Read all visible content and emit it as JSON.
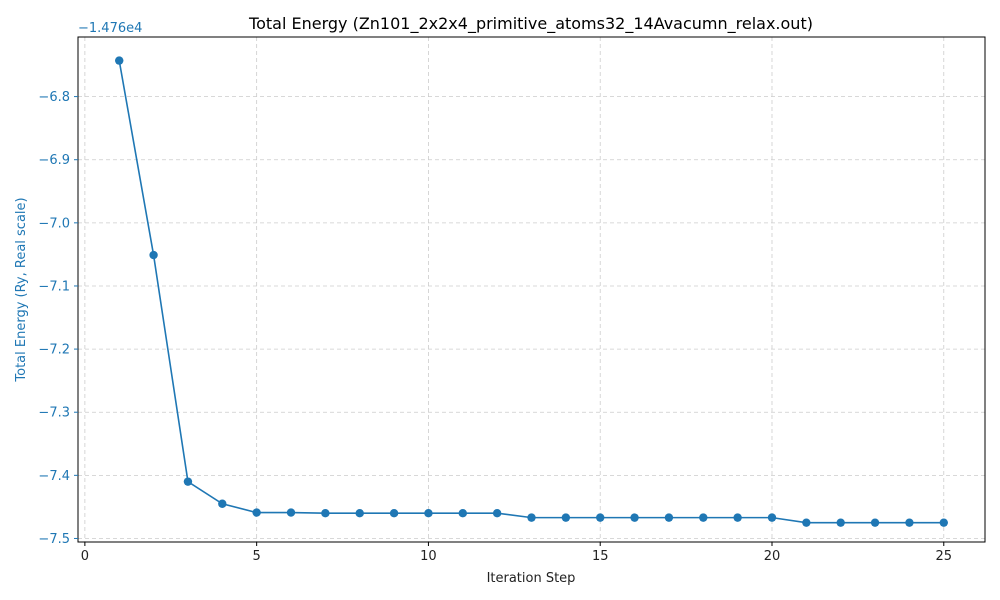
{
  "chart_data": {
    "type": "line",
    "title": "Total Energy (Zn101_2x2x4_primitive_atoms32_14Avacumn_relax.out)",
    "xlabel": "Iteration Step",
    "ylabel": "Total Energy (Ry, Real scale)",
    "offset_label": "−1.476e4",
    "offset_value": -14760,
    "xlim": [
      -0.2,
      26.2
    ],
    "ylim": [
      -7.5056,
      -6.7056
    ],
    "x_ticks": [
      0,
      5,
      10,
      15,
      20,
      25
    ],
    "x_tick_labels": [
      "0",
      "5",
      "10",
      "15",
      "20",
      "25"
    ],
    "y_ticks": [
      -6.8,
      -6.9,
      -7.0,
      -7.1,
      -7.2,
      -7.3,
      -7.4,
      -7.5
    ],
    "y_tick_labels": [
      "−6.8",
      "−6.9",
      "−7.0",
      "−7.1",
      "−7.2",
      "−7.3",
      "−7.4",
      "−7.5"
    ],
    "grid": true,
    "series": [
      {
        "marker": "circle",
        "color": "#1f77b4",
        "x": [
          1,
          2,
          3,
          4,
          5,
          6,
          7,
          8,
          9,
          10,
          11,
          12,
          13,
          14,
          15,
          16,
          17,
          18,
          19,
          20,
          21,
          22,
          23,
          24,
          25
        ],
        "y": [
          -6.743,
          -7.051,
          -7.41,
          -7.445,
          -7.459,
          -7.459,
          -7.46,
          -7.46,
          -7.46,
          -7.46,
          -7.46,
          -7.46,
          -7.467,
          -7.467,
          -7.467,
          -7.467,
          -7.467,
          -7.467,
          -7.467,
          -7.467,
          -7.475,
          -7.475,
          -7.475,
          -7.475,
          -7.475
        ]
      }
    ]
  }
}
